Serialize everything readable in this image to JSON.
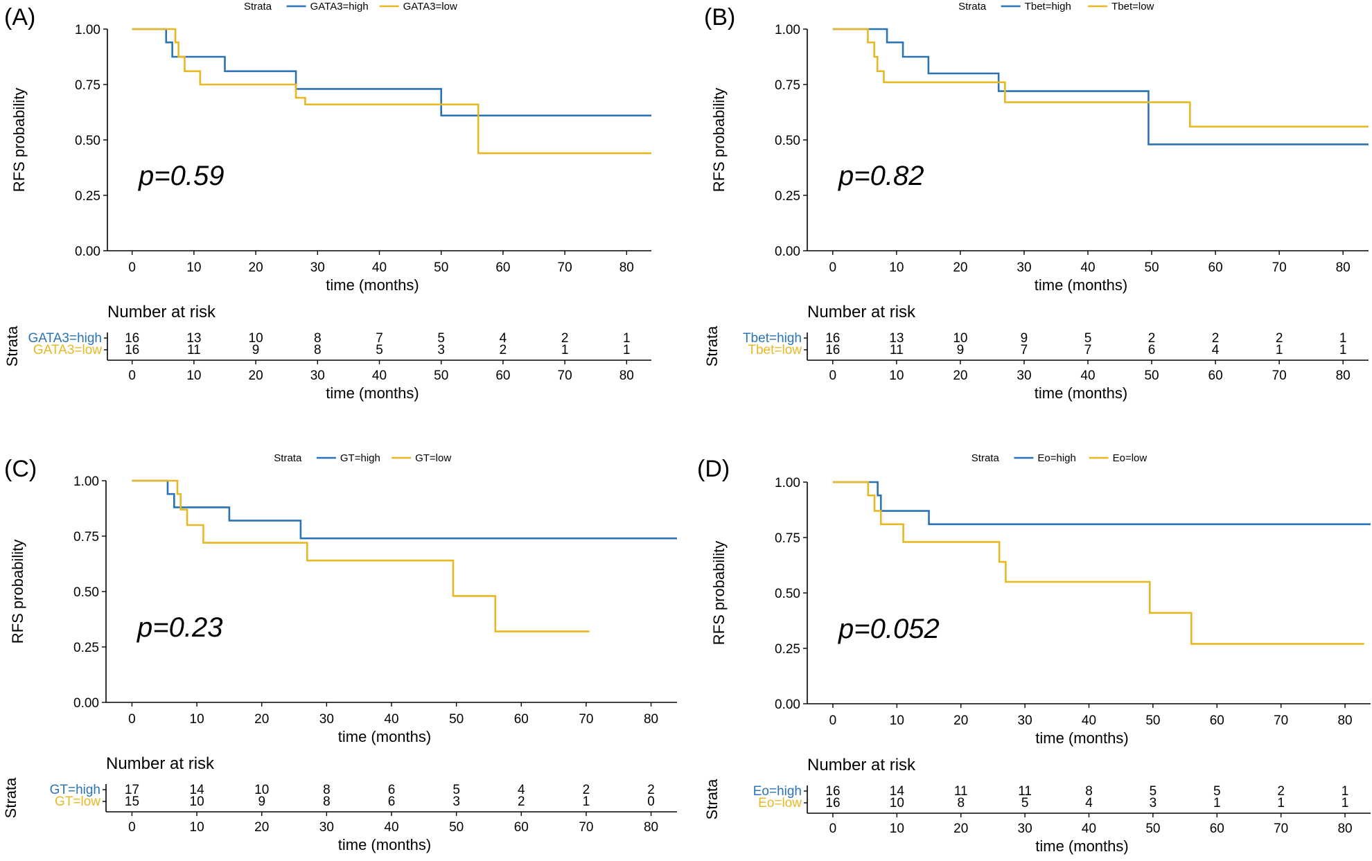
{
  "colors": {
    "high": "#2a73b5",
    "low": "#e8b823",
    "axis": "#000000"
  },
  "chart_data": [
    {
      "panel_label": "(A)",
      "type": "line",
      "subtype": "kaplan-meier",
      "legend_title": "Strata",
      "ylabel": "RFS probability",
      "xlabel": "time (months)",
      "xlim": [
        -4,
        84
      ],
      "ylim": [
        0,
        1
      ],
      "xticks": [
        "0",
        "10",
        "20",
        "30",
        "40",
        "50",
        "60",
        "70",
        "80"
      ],
      "yticks": [
        "0.00",
        "0.25",
        "0.50",
        "0.75",
        "1.00"
      ],
      "pvalue": "p=0.59",
      "series": [
        {
          "name": "GATA3=high",
          "color": "high",
          "x": [
            0,
            5.5,
            6.5,
            15,
            26.5,
            50,
            84
          ],
          "y": [
            1.0,
            0.94,
            0.875,
            0.81,
            0.73,
            0.61,
            0.61
          ]
        },
        {
          "name": "GATA3=low",
          "color": "low",
          "x": [
            0,
            7,
            7.5,
            8.5,
            11,
            26.5,
            28,
            56,
            84
          ],
          "y": [
            1.0,
            0.94,
            0.875,
            0.81,
            0.75,
            0.69,
            0.66,
            0.44,
            0.44
          ]
        }
      ],
      "risk_table": {
        "title": "Number at risk",
        "strata_axis_label": "Strata",
        "rows": [
          {
            "label": "GATA3=high",
            "color": "high",
            "values": [
              "16",
              "13",
              "10",
              "8",
              "7",
              "5",
              "4",
              "2",
              "1"
            ]
          },
          {
            "label": "GATA3=low",
            "color": "low",
            "values": [
              "16",
              "11",
              "9",
              "8",
              "5",
              "3",
              "2",
              "1",
              "1"
            ]
          }
        ],
        "xlabel": "time (months)"
      }
    },
    {
      "panel_label": "(B)",
      "type": "line",
      "subtype": "kaplan-meier",
      "legend_title": "Strata",
      "ylabel": "RFS probability",
      "xlabel": "time (months)",
      "xlim": [
        -4,
        84
      ],
      "ylim": [
        0,
        1
      ],
      "xticks": [
        "0",
        "10",
        "20",
        "30",
        "40",
        "50",
        "60",
        "70",
        "80"
      ],
      "yticks": [
        "0.00",
        "0.25",
        "0.50",
        "0.75",
        "1.00"
      ],
      "pvalue": "p=0.82",
      "series": [
        {
          "name": "Tbet=high",
          "color": "high",
          "x": [
            0,
            5.5,
            8.5,
            11,
            15,
            26,
            49.5,
            84
          ],
          "y": [
            1.0,
            1.0,
            0.94,
            0.875,
            0.8,
            0.72,
            0.48,
            0.48
          ]
        },
        {
          "name": "Tbet=low",
          "color": "low",
          "x": [
            0,
            5.5,
            6.5,
            7,
            8,
            27,
            56,
            84
          ],
          "y": [
            1.0,
            0.94,
            0.875,
            0.81,
            0.76,
            0.67,
            0.56,
            0.56
          ]
        }
      ],
      "risk_table": {
        "title": "Number at risk",
        "strata_axis_label": "Strata",
        "rows": [
          {
            "label": "Tbet=high",
            "color": "high",
            "values": [
              "16",
              "13",
              "10",
              "9",
              "5",
              "2",
              "2",
              "2",
              "1"
            ]
          },
          {
            "label": "Tbet=low",
            "color": "low",
            "values": [
              "16",
              "11",
              "9",
              "7",
              "7",
              "6",
              "4",
              "1",
              "1"
            ]
          }
        ],
        "xlabel": "time (months)"
      }
    },
    {
      "panel_label": "(C)",
      "type": "line",
      "subtype": "kaplan-meier",
      "legend_title": "Strata",
      "ylabel": "RFS probability",
      "xlabel": "time (months)",
      "xlim": [
        -4,
        84
      ],
      "ylim": [
        0,
        1
      ],
      "xticks": [
        "0",
        "10",
        "20",
        "30",
        "40",
        "50",
        "60",
        "70",
        "80"
      ],
      "yticks": [
        "0.00",
        "0.25",
        "0.50",
        "0.75",
        "1.00"
      ],
      "pvalue": "p=0.23",
      "series": [
        {
          "name": "GT=high",
          "color": "high",
          "x": [
            0,
            5.5,
            6.5,
            15,
            26,
            84
          ],
          "y": [
            1.0,
            0.94,
            0.88,
            0.82,
            0.74,
            0.74
          ]
        },
        {
          "name": "GT=low",
          "color": "low",
          "x": [
            0,
            7,
            7.5,
            8.5,
            11,
            27,
            49.5,
            56,
            70.5
          ],
          "y": [
            1.0,
            0.94,
            0.87,
            0.8,
            0.72,
            0.64,
            0.48,
            0.32,
            0.32
          ]
        }
      ],
      "risk_table": {
        "title": "Number at risk",
        "strata_axis_label": "Strata",
        "rows": [
          {
            "label": "GT=high",
            "color": "high",
            "values": [
              "17",
              "14",
              "10",
              "8",
              "6",
              "5",
              "4",
              "2",
              "2"
            ]
          },
          {
            "label": "GT=low",
            "color": "low",
            "values": [
              "15",
              "10",
              "9",
              "8",
              "6",
              "3",
              "2",
              "1",
              "0"
            ]
          }
        ],
        "xlabel": "time (months)"
      }
    },
    {
      "panel_label": "(D)",
      "type": "line",
      "subtype": "kaplan-meier",
      "legend_title": "Strata",
      "ylabel": "RFS probability",
      "xlabel": "time (months)",
      "xlim": [
        -4,
        84
      ],
      "ylim": [
        0,
        1
      ],
      "xticks": [
        "0",
        "10",
        "20",
        "30",
        "40",
        "50",
        "60",
        "70",
        "80"
      ],
      "yticks": [
        "0.00",
        "0.25",
        "0.50",
        "0.75",
        "1.00"
      ],
      "pvalue": "p=0.052",
      "series": [
        {
          "name": "Eo=high",
          "color": "high",
          "x": [
            0,
            5.5,
            7,
            7.5,
            15,
            84
          ],
          "y": [
            1.0,
            1.0,
            0.94,
            0.87,
            0.81,
            0.81
          ]
        },
        {
          "name": "Eo=low",
          "color": "low",
          "x": [
            0,
            5.5,
            6.5,
            7.5,
            11,
            26,
            27,
            49.5,
            56,
            83
          ],
          "y": [
            1.0,
            0.94,
            0.87,
            0.81,
            0.73,
            0.64,
            0.55,
            0.41,
            0.27,
            0.27
          ]
        }
      ],
      "risk_table": {
        "title": "Number at risk",
        "strata_axis_label": "Strata",
        "rows": [
          {
            "label": "Eo=high",
            "color": "high",
            "values": [
              "16",
              "14",
              "11",
              "11",
              "8",
              "5",
              "5",
              "2",
              "1"
            ]
          },
          {
            "label": "Eo=low",
            "color": "low",
            "values": [
              "16",
              "10",
              "8",
              "5",
              "4",
              "3",
              "1",
              "1",
              "1"
            ]
          }
        ],
        "xlabel": "time (months)"
      }
    }
  ]
}
